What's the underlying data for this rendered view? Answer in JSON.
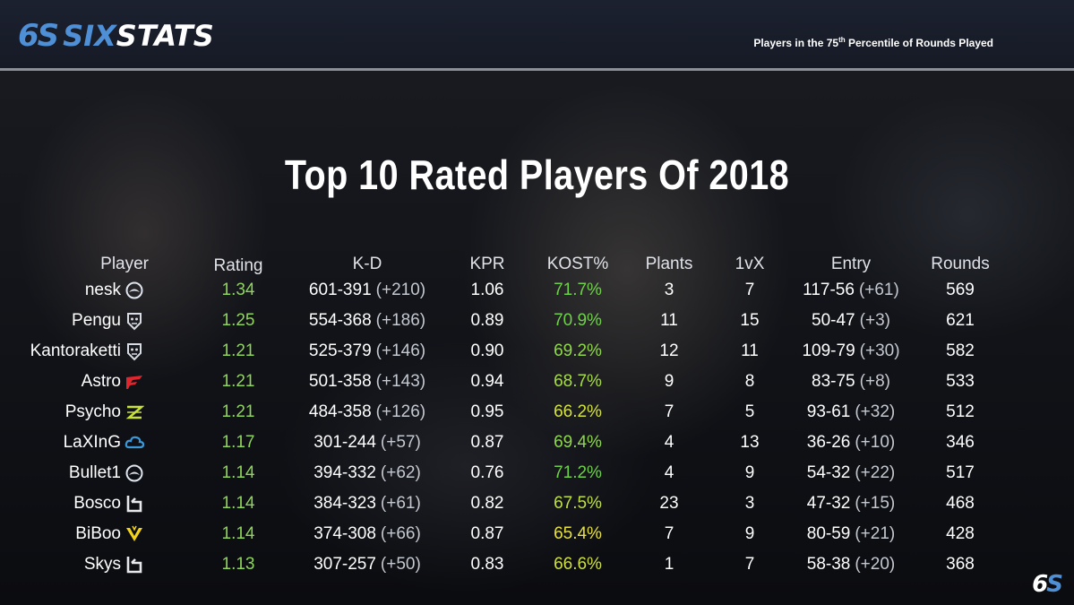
{
  "header": {
    "logo_mark_a": "6",
    "logo_mark_b": "S",
    "logo_text_a": "SIX",
    "logo_text_b": "STATS",
    "subtitle_pre": "Players in the 75",
    "subtitle_sup": "th",
    "subtitle_post": " Percentile of Rounds Played"
  },
  "title": "Top 10 Rated Players Of 2018",
  "columns": {
    "player": "Player",
    "rating": "Rating",
    "kd": "K-D",
    "kpr": "KPR",
    "kost": "KOST%",
    "plants": "Plants",
    "onevx": "1vX",
    "entry": "Entry",
    "rounds": "Rounds"
  },
  "rows": [
    {
      "player": "nesk",
      "team_icon": "team-liquid-icon",
      "team_color": "#dfe6ef",
      "rating": "1.34",
      "kd": "601-391",
      "kd_diff": "(+210)",
      "kpr": "1.06",
      "kost": "71.7%",
      "kost_color": "#6fd04a",
      "plants": "3",
      "onevx": "7",
      "entry": "117-56",
      "entry_diff": "(+61)",
      "rounds": "569"
    },
    {
      "player": "Pengu",
      "team_icon": "g2-esports-icon",
      "team_color": "#d8dce4",
      "rating": "1.25",
      "kd": "554-368",
      "kd_diff": "(+186)",
      "kpr": "0.89",
      "kost": "70.9%",
      "kost_color": "#6fd04a",
      "plants": "11",
      "onevx": "15",
      "entry": "50-47",
      "entry_diff": "(+3)",
      "rounds": "621"
    },
    {
      "player": "Kantoraketti",
      "team_icon": "g2-esports-icon",
      "team_color": "#d8dce4",
      "rating": "1.21",
      "kd": "525-379",
      "kd_diff": "(+146)",
      "kpr": "0.90",
      "kost": "69.2%",
      "kost_color": "#8ed84a",
      "plants": "12",
      "onevx": "11",
      "entry": "109-79",
      "entry_diff": "(+30)",
      "rounds": "582"
    },
    {
      "player": "Astro",
      "team_icon": "faze-clan-icon",
      "team_color": "#e0262c",
      "rating": "1.21",
      "kd": "501-358",
      "kd_diff": "(+143)",
      "kpr": "0.94",
      "kost": "68.7%",
      "kost_color": "#a5dc46",
      "plants": "9",
      "onevx": "8",
      "entry": "83-75",
      "entry_diff": "(+8)",
      "rounds": "533"
    },
    {
      "player": "Psycho",
      "team_icon": "ninjas-in-pyjamas-icon",
      "team_color": "#c8e03a",
      "rating": "1.21",
      "kd": "484-358",
      "kd_diff": "(+126)",
      "kpr": "0.95",
      "kost": "66.2%",
      "kost_color": "#d4e23c",
      "plants": "7",
      "onevx": "5",
      "entry": "93-61",
      "entry_diff": "(+32)",
      "rounds": "512"
    },
    {
      "player": "LaXInG",
      "team_icon": "cloud9-icon",
      "team_color": "#3a9ad9",
      "rating": "1.17",
      "kd": "301-244",
      "kd_diff": "(+57)",
      "kpr": "0.87",
      "kost": "69.4%",
      "kost_color": "#8ed84a",
      "plants": "4",
      "onevx": "13",
      "entry": "36-26",
      "entry_diff": "(+10)",
      "rounds": "346"
    },
    {
      "player": "Bullet1",
      "team_icon": "team-liquid-icon",
      "team_color": "#dfe6ef",
      "rating": "1.14",
      "kd": "394-332",
      "kd_diff": "(+62)",
      "kpr": "0.76",
      "kost": "71.2%",
      "kost_color": "#6fd04a",
      "plants": "4",
      "onevx": "9",
      "entry": "54-32",
      "entry_diff": "(+22)",
      "rounds": "517"
    },
    {
      "player": "Bosco",
      "team_icon": "obey-alliance-icon",
      "team_color": "#e6e8ec",
      "rating": "1.14",
      "kd": "384-323",
      "kd_diff": "(+61)",
      "kpr": "0.82",
      "kost": "67.5%",
      "kost_color": "#bfe042",
      "plants": "23",
      "onevx": "3",
      "entry": "47-32",
      "entry_diff": "(+15)",
      "rounds": "468"
    },
    {
      "player": "BiBoo",
      "team_icon": "team-vitality-icon",
      "team_color": "#f2d21a",
      "rating": "1.14",
      "kd": "374-308",
      "kd_diff": "(+66)",
      "kpr": "0.87",
      "kost": "65.4%",
      "kost_color": "#e8e23a",
      "plants": "7",
      "onevx": "9",
      "entry": "80-59",
      "entry_diff": "(+21)",
      "rounds": "428"
    },
    {
      "player": "Skys",
      "team_icon": "obey-alliance-icon",
      "team_color": "#e6e8ec",
      "rating": "1.13",
      "kd": "307-257",
      "kd_diff": "(+50)",
      "kpr": "0.83",
      "kost": "66.6%",
      "kost_color": "#cfe03e",
      "plants": "1",
      "onevx": "7",
      "entry": "58-38",
      "entry_diff": "(+20)",
      "rounds": "368"
    }
  ],
  "footer": {
    "mark_a": "6",
    "mark_b": "S"
  },
  "colors": {
    "rating_green": "#8fd45b",
    "accent_blue": "#4f8fd6"
  }
}
